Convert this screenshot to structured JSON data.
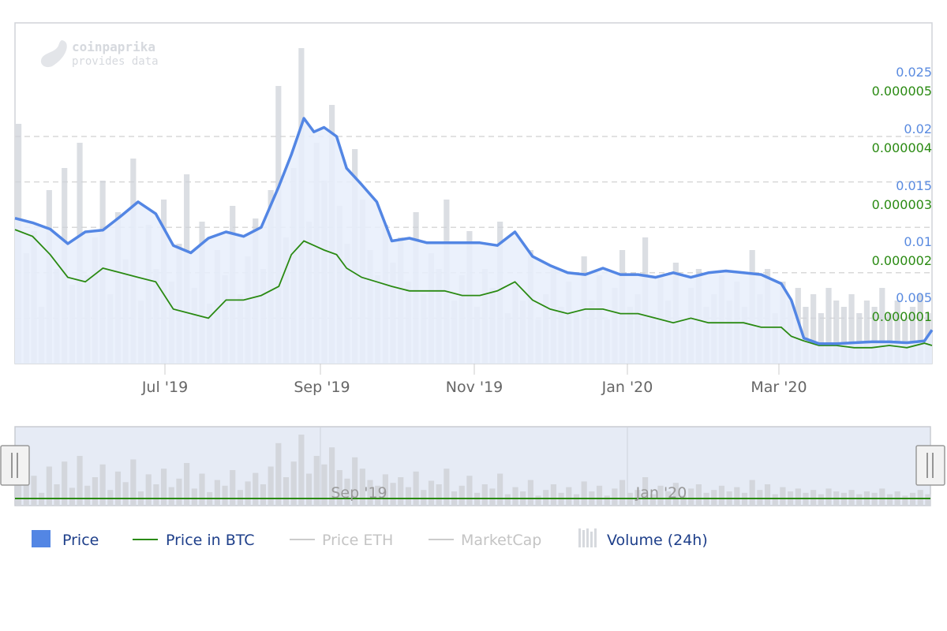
{
  "watermark": {
    "brand": "coinpaprika",
    "tagline": "provides data"
  },
  "colors": {
    "price": "#5386e4",
    "price_fill": "#e8eefb",
    "btc": "#2a8a12",
    "volume": "#cfd3da",
    "grid": "#d8d8d8",
    "navigator_bg": "#e6ebf5",
    "legend_active": "#1e3f8a",
    "legend_inactive": "#c4c4c4"
  },
  "chart_data": {
    "type": "line",
    "x_range": [
      "2019-05-01",
      "2020-04-30"
    ],
    "x_ticks": [
      "Jul '19",
      "Sep '19",
      "Nov '19",
      "Jan '20",
      "Mar '20"
    ],
    "y_axis_price": {
      "ticks": [
        "0.025",
        "0.02",
        "0.015",
        "0.01",
        "0.005"
      ],
      "range": [
        0,
        0.0375
      ]
    },
    "y_axis_btc": {
      "ticks": [
        "0.000005",
        "0.000004",
        "0.000003",
        "0.000002",
        "0.000001"
      ],
      "range": [
        0,
        7.5e-06
      ]
    },
    "grid": true,
    "series": [
      {
        "name": "Price",
        "axis": "price",
        "x": [
          "2019-05-01",
          "2019-05-08",
          "2019-05-15",
          "2019-05-22",
          "2019-05-29",
          "2019-06-05",
          "2019-06-12",
          "2019-06-19",
          "2019-06-26",
          "2019-07-03",
          "2019-07-10",
          "2019-07-17",
          "2019-07-24",
          "2019-07-31",
          "2019-08-07",
          "2019-08-14",
          "2019-08-19",
          "2019-08-24",
          "2019-08-28",
          "2019-09-01",
          "2019-09-06",
          "2019-09-10",
          "2019-09-16",
          "2019-09-22",
          "2019-09-28",
          "2019-10-05",
          "2019-10-12",
          "2019-10-19",
          "2019-10-26",
          "2019-11-02",
          "2019-11-09",
          "2019-11-16",
          "2019-11-23",
          "2019-11-30",
          "2019-12-07",
          "2019-12-14",
          "2019-12-21",
          "2019-12-28",
          "2020-01-04",
          "2020-01-11",
          "2020-01-18",
          "2020-01-25",
          "2020-02-01",
          "2020-02-08",
          "2020-02-15",
          "2020-02-22",
          "2020-03-01",
          "2020-03-05",
          "2020-03-10",
          "2020-03-16",
          "2020-03-23",
          "2020-03-30",
          "2020-04-06",
          "2020-04-13",
          "2020-04-20",
          "2020-04-27",
          "2020-04-30"
        ],
        "values": [
          0.016,
          0.0155,
          0.0148,
          0.0132,
          0.0145,
          0.0147,
          0.0162,
          0.0178,
          0.0165,
          0.013,
          0.0122,
          0.0138,
          0.0145,
          0.014,
          0.015,
          0.0195,
          0.023,
          0.027,
          0.0255,
          0.026,
          0.025,
          0.0215,
          0.0197,
          0.0178,
          0.0135,
          0.0138,
          0.0133,
          0.0133,
          0.0133,
          0.0133,
          0.013,
          0.0145,
          0.0118,
          0.0108,
          0.01,
          0.0098,
          0.0105,
          0.0098,
          0.0098,
          0.0095,
          0.01,
          0.0095,
          0.01,
          0.0102,
          0.01,
          0.0098,
          0.0088,
          0.007,
          0.0028,
          0.0022,
          0.0022,
          0.0023,
          0.0024,
          0.0024,
          0.0023,
          0.0025,
          0.0037
        ]
      },
      {
        "name": "Price in BTC",
        "axis": "btc",
        "x": [
          "2019-05-01",
          "2019-05-08",
          "2019-05-15",
          "2019-05-22",
          "2019-05-29",
          "2019-06-05",
          "2019-06-12",
          "2019-06-19",
          "2019-06-26",
          "2019-07-03",
          "2019-07-10",
          "2019-07-17",
          "2019-07-24",
          "2019-07-31",
          "2019-08-07",
          "2019-08-14",
          "2019-08-19",
          "2019-08-24",
          "2019-08-28",
          "2019-09-01",
          "2019-09-06",
          "2019-09-10",
          "2019-09-16",
          "2019-09-22",
          "2019-09-28",
          "2019-10-05",
          "2019-10-12",
          "2019-10-19",
          "2019-10-26",
          "2019-11-02",
          "2019-11-09",
          "2019-11-16",
          "2019-11-23",
          "2019-11-30",
          "2019-12-07",
          "2019-12-14",
          "2019-12-21",
          "2019-12-28",
          "2020-01-04",
          "2020-01-11",
          "2020-01-18",
          "2020-01-25",
          "2020-02-01",
          "2020-02-08",
          "2020-02-15",
          "2020-02-22",
          "2020-03-01",
          "2020-03-05",
          "2020-03-10",
          "2020-03-16",
          "2020-03-23",
          "2020-03-30",
          "2020-04-06",
          "2020-04-13",
          "2020-04-20",
          "2020-04-27",
          "2020-04-30"
        ],
        "values": [
          2.95e-06,
          2.8e-06,
          2.4e-06,
          1.9e-06,
          1.8e-06,
          2.1e-06,
          2e-06,
          1.9e-06,
          1.8e-06,
          1.2e-06,
          1.1e-06,
          1e-06,
          1.4e-06,
          1.4e-06,
          1.5e-06,
          1.7e-06,
          2.4e-06,
          2.7e-06,
          2.6e-06,
          2.5e-06,
          2.4e-06,
          2.1e-06,
          1.9e-06,
          1.8e-06,
          1.7e-06,
          1.6e-06,
          1.6e-06,
          1.6e-06,
          1.5e-06,
          1.5e-06,
          1.6e-06,
          1.8e-06,
          1.4e-06,
          1.2e-06,
          1.1e-06,
          1.2e-06,
          1.2e-06,
          1.1e-06,
          1.1e-06,
          1e-06,
          9e-07,
          1e-06,
          9e-07,
          9e-07,
          9e-07,
          8e-07,
          8e-07,
          6e-07,
          5e-07,
          4e-07,
          4e-07,
          3.5e-07,
          3.5e-07,
          4e-07,
          3.5e-07,
          4.5e-07,
          4e-07
        ]
      },
      {
        "name": "Volume (24h)",
        "values": [
          0.76,
          0.35,
          0.42,
          0.18,
          0.55,
          0.3,
          0.62,
          0.25,
          0.7,
          0.28,
          0.4,
          0.58,
          0.22,
          0.48,
          0.33,
          0.65,
          0.2,
          0.44,
          0.3,
          0.52,
          0.26,
          0.38,
          0.6,
          0.24,
          0.45,
          0.19,
          0.36,
          0.28,
          0.5,
          0.22,
          0.34,
          0.46,
          0.3,
          0.55,
          0.88,
          0.4,
          0.62,
          1.0,
          0.45,
          0.7,
          0.58,
          0.82,
          0.5,
          0.38,
          0.68,
          0.52,
          0.36,
          0.28,
          0.44,
          0.32,
          0.4,
          0.26,
          0.48,
          0.22,
          0.35,
          0.3,
          0.52,
          0.2,
          0.28,
          0.42,
          0.18,
          0.3,
          0.24,
          0.45,
          0.16,
          0.26,
          0.2,
          0.36,
          0.14,
          0.22,
          0.3,
          0.18,
          0.26,
          0.16,
          0.34,
          0.2,
          0.28,
          0.14,
          0.24,
          0.36,
          0.18,
          0.22,
          0.4,
          0.16,
          0.28,
          0.2,
          0.32,
          0.14,
          0.24,
          0.3,
          0.18,
          0.22,
          0.28,
          0.2,
          0.26,
          0.18,
          0.36,
          0.22,
          0.3,
          0.16,
          0.26,
          0.2,
          0.24,
          0.18,
          0.22,
          0.16,
          0.24,
          0.2,
          0.18,
          0.22,
          0.16,
          0.2,
          0.18,
          0.24,
          0.16,
          0.2,
          0.14,
          0.18,
          0.22,
          0.16
        ]
      }
    ]
  },
  "navigator": {
    "ticks": [
      "Sep '19",
      "Jan '20"
    ]
  },
  "legend": [
    {
      "label": "Price",
      "symbol": "square",
      "active": true
    },
    {
      "label": "Price in BTC",
      "symbol": "line-green",
      "active": true
    },
    {
      "label": "Price ETH",
      "symbol": "line-grey",
      "active": false
    },
    {
      "label": "MarketCap",
      "symbol": "line-grey",
      "active": false
    },
    {
      "label": "Volume (24h)",
      "symbol": "bars",
      "active": true
    }
  ]
}
